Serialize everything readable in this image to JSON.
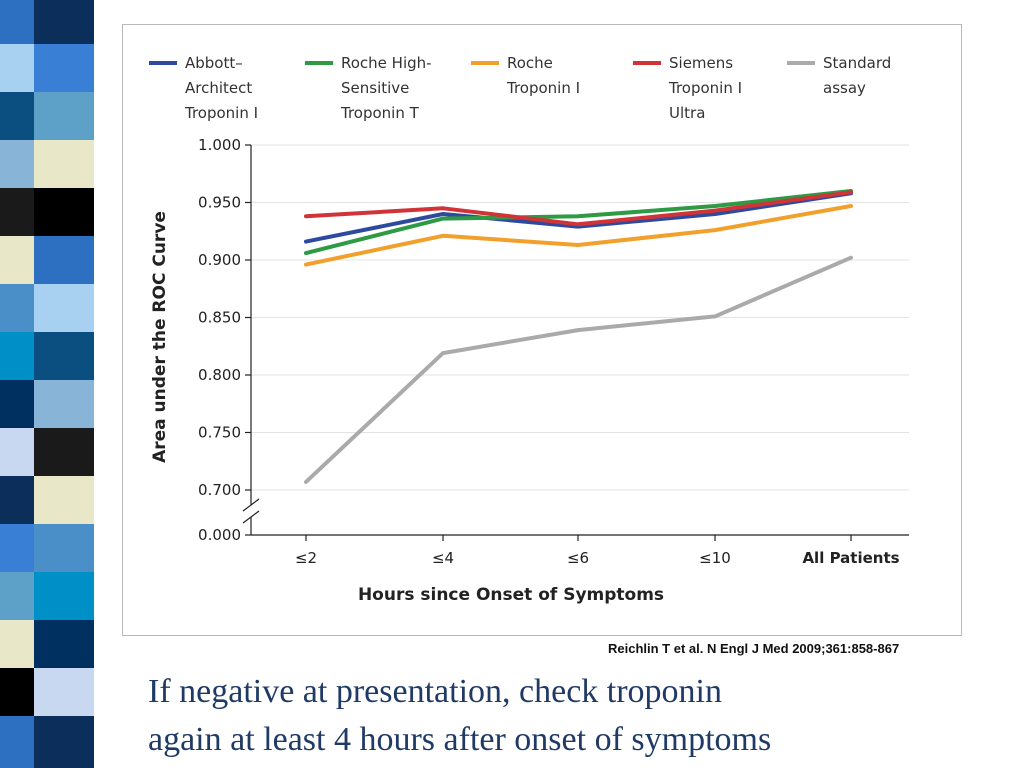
{
  "slide": {
    "citation": "Reichlin T et al. N Engl J Med 2009;361:858-867",
    "caption_lines": [
      "If negative at presentation, check troponin",
      "again at least 4 hours after onset of symptoms"
    ]
  },
  "chart_data": {
    "type": "line",
    "title": "",
    "xlabel": "Hours since Onset of Symptoms",
    "ylabel": "Area under the ROC Curve",
    "categories": [
      "≤2",
      "≤4",
      "≤6",
      "≤10",
      "All Patients"
    ],
    "ylim": [
      0.7,
      1.0
    ],
    "axis_break_label": "0.000",
    "yticks": [
      0.7,
      0.75,
      0.8,
      0.85,
      0.9,
      0.95,
      1.0
    ],
    "ytick_labels": [
      "0.700",
      "0.750",
      "0.800",
      "0.850",
      "0.900",
      "0.950",
      "1.000"
    ],
    "grid": true,
    "legend_position": "top",
    "series": [
      {
        "name": "Abbott–Architect Troponin I",
        "legend_lines": [
          "Abbott–",
          "Architect",
          "Troponin I"
        ],
        "color": "#2e4a9e",
        "values": [
          0.916,
          0.94,
          0.929,
          0.94,
          0.958
        ]
      },
      {
        "name": "Roche High-Sensitive Troponin T",
        "legend_lines": [
          "Roche High-",
          "Sensitive",
          "Troponin T"
        ],
        "color": "#2e9a44",
        "values": [
          0.906,
          0.936,
          0.938,
          0.947,
          0.96
        ]
      },
      {
        "name": "Roche Troponin I",
        "legend_lines": [
          "Roche",
          "Troponin I"
        ],
        "color": "#f2a02c",
        "values": [
          0.896,
          0.921,
          0.913,
          0.926,
          0.947
        ]
      },
      {
        "name": "Siemens Troponin I Ultra",
        "legend_lines": [
          "Siemens",
          "Troponin I",
          "Ultra"
        ],
        "color": "#d03438",
        "values": [
          0.938,
          0.945,
          0.931,
          0.943,
          0.959
        ]
      },
      {
        "name": "Standard assay",
        "legend_lines": [
          "Standard",
          "assay"
        ],
        "color": "#aaaaaa",
        "values": [
          0.707,
          0.819,
          0.839,
          0.851,
          0.902
        ]
      }
    ]
  }
}
